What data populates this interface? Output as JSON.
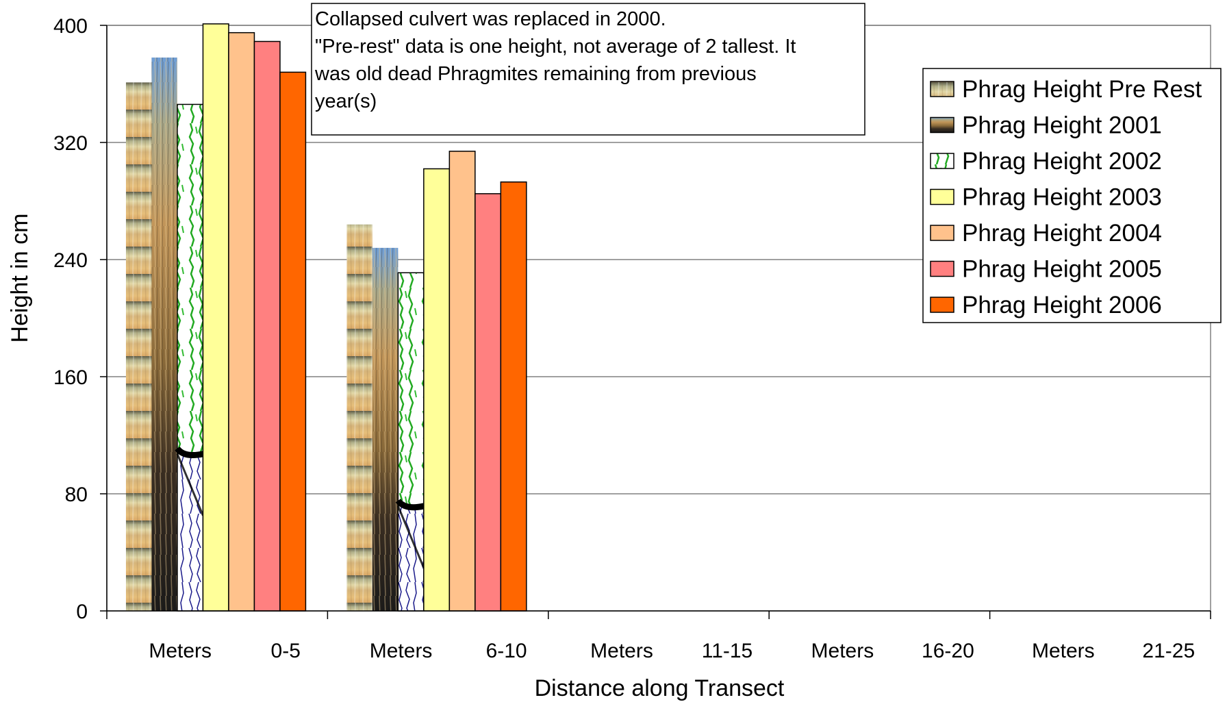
{
  "chart_data": {
    "type": "bar",
    "title": "",
    "xlabel": "Distance along Transect",
    "ylabel": "Height in cm",
    "ylim": [
      0,
      400
    ],
    "yticks": [
      0,
      80,
      160,
      240,
      320,
      400
    ],
    "grid": true,
    "legend_position": "top-right",
    "categories": [
      "Meters 0-5",
      "Meters 6-10",
      "Meters 11-15",
      "Meters 16-20",
      "Meters 21-25"
    ],
    "category_labels": [
      [
        "Meters",
        "0-5"
      ],
      [
        "Meters",
        "6-10"
      ],
      [
        "Meters",
        "11-15"
      ],
      [
        "Meters",
        "16-20"
      ],
      [
        "Meters",
        "21-25"
      ]
    ],
    "series": [
      {
        "name": "Phrag Height Pre Rest",
        "values": [
          361,
          264,
          null,
          null,
          null
        ],
        "color": "#d8b878",
        "pattern": "pre-rest"
      },
      {
        "name": "Phrag Height 2001",
        "values": [
          378,
          248,
          null,
          null,
          null
        ],
        "color": "#8a6a3a",
        "pattern": "reeds"
      },
      {
        "name": "Phrag Height 2002",
        "values": [
          346,
          231,
          null,
          null,
          null
        ],
        "color": "#ffffff",
        "pattern": "roots"
      },
      {
        "name": "Phrag Height 2003",
        "values": [
          401,
          302,
          null,
          null,
          null
        ],
        "color": "#ffff99"
      },
      {
        "name": "Phrag Height 2004",
        "values": [
          395,
          314,
          null,
          null,
          null
        ],
        "color": "#ffc28c"
      },
      {
        "name": "Phrag Height 2005",
        "values": [
          389,
          285,
          null,
          null,
          null
        ],
        "color": "#ff8080"
      },
      {
        "name": "Phrag Height 2006",
        "values": [
          368,
          293,
          null,
          null,
          null
        ],
        "color": "#ff6600"
      }
    ],
    "annotation": [
      "Collapsed culvert was replaced in 2000.",
      "\"Pre-rest\" data is one height, not average of 2 tallest. It",
      "was old dead Phragmites remaining from previous",
      "year(s)"
    ]
  }
}
